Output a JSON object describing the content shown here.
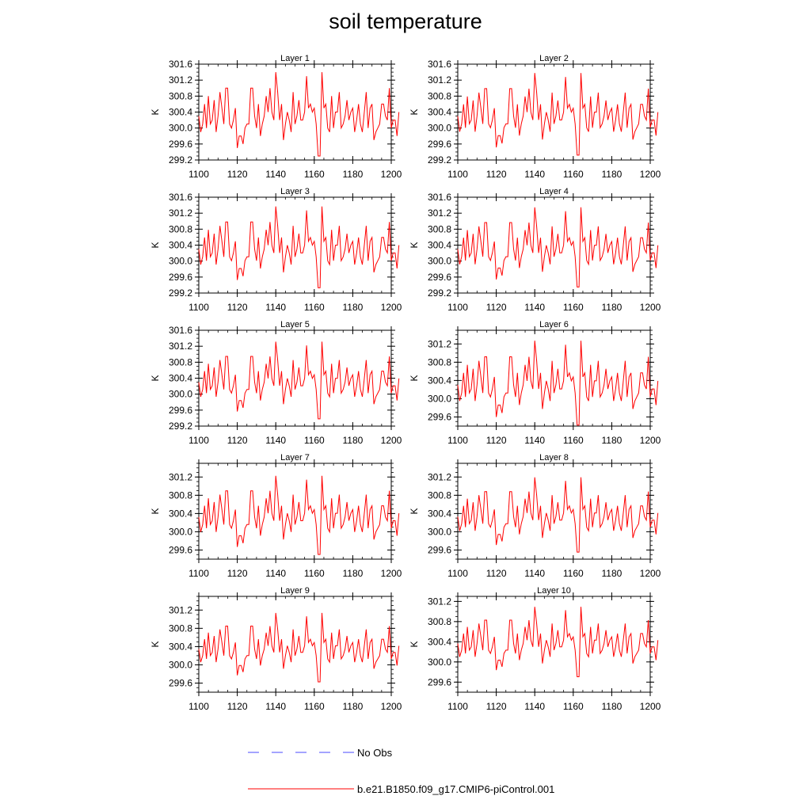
{
  "title": "soil temperature",
  "legend": {
    "obs_label": "No Obs",
    "model_label": "b.e21.B1850.f09_g17.CMIP6-piControl.001",
    "obs_color": "#4a4aff",
    "model_color": "#ff0000"
  },
  "chart_data": {
    "type": "line",
    "x_range": [
      1100,
      1200
    ],
    "x_ticks": [
      1100,
      1120,
      1140,
      1160,
      1180,
      1200
    ],
    "ylabel": "K",
    "line_color": "#ff0000",
    "base_series": [
      300.3,
      299.9,
      300.1,
      300.6,
      300.0,
      300.8,
      300.1,
      300.2,
      300.7,
      299.9,
      300.3,
      300.9,
      300.5,
      300.1,
      301.0,
      301.0,
      300.1,
      300.0,
      300.2,
      300.5,
      299.5,
      299.8,
      299.8,
      299.6,
      300.0,
      300.1,
      300.1,
      301.0,
      301.0,
      300.3,
      300.0,
      300.6,
      299.8,
      300.1,
      300.3,
      300.8,
      300.4,
      301.0,
      300.4,
      300.2,
      301.4,
      300.9,
      300.2,
      300.6,
      299.7,
      300.1,
      300.4,
      300.2,
      299.9,
      300.9,
      300.1,
      300.3,
      300.7,
      300.2,
      300.2,
      300.4,
      301.3,
      300.5,
      300.6,
      300.4,
      300.5,
      300.1,
      299.3,
      299.3,
      301.4,
      300.5,
      300.6,
      300.0,
      299.9,
      300.8,
      300.0,
      300.4,
      300.4,
      300.9,
      300.0,
      300.1,
      300.3,
      300.7,
      300.2,
      300.4,
      300.5,
      299.9,
      300.2,
      300.6,
      300.1,
      299.9,
      300.4,
      300.9,
      300.0,
      300.5,
      300.6,
      299.7,
      299.9,
      300.0,
      300.1,
      300.6,
      300.6,
      300.3,
      300.2,
      301.0,
      300.0,
      300.2,
      300.2,
      299.8,
      300.4
    ],
    "panels": [
      {
        "label": "Layer 1",
        "ylim": [
          299.2,
          301.6
        ],
        "yticks": [
          299.2,
          299.6,
          300.0,
          300.4,
          300.8,
          301.2,
          301.6
        ],
        "amp": 1.0,
        "offset": 0.0
      },
      {
        "label": "Layer 2",
        "ylim": [
          299.2,
          301.6
        ],
        "yticks": [
          299.2,
          299.6,
          300.0,
          300.4,
          300.8,
          301.2,
          301.6
        ],
        "amp": 0.98,
        "offset": 0.0
      },
      {
        "label": "Layer 3",
        "ylim": [
          299.2,
          301.6
        ],
        "yticks": [
          299.2,
          299.6,
          300.0,
          300.4,
          300.8,
          301.2,
          301.6
        ],
        "amp": 0.97,
        "offset": 0.0
      },
      {
        "label": "Layer 4",
        "ylim": [
          299.2,
          301.6
        ],
        "yticks": [
          299.2,
          299.6,
          300.0,
          300.4,
          300.8,
          301.2,
          301.6
        ],
        "amp": 0.95,
        "offset": 0.0
      },
      {
        "label": "Layer 5",
        "ylim": [
          299.2,
          301.6
        ],
        "yticks": [
          299.2,
          299.6,
          300.0,
          300.4,
          300.8,
          301.2,
          301.6
        ],
        "amp": 0.92,
        "offset": 0.0
      },
      {
        "label": "Layer 6",
        "ylim": [
          299.4,
          301.5
        ],
        "yticks": [
          299.6,
          300.0,
          300.4,
          300.8,
          301.2
        ],
        "amp": 0.88,
        "offset": 0.0
      },
      {
        "label": "Layer 7",
        "ylim": [
          299.4,
          301.5
        ],
        "yticks": [
          299.6,
          300.0,
          300.4,
          300.8,
          301.2
        ],
        "amp": 0.82,
        "offset": 0.02
      },
      {
        "label": "Layer 8",
        "ylim": [
          299.4,
          301.5
        ],
        "yticks": [
          299.6,
          300.0,
          300.4,
          300.8,
          301.2
        ],
        "amp": 0.78,
        "offset": 0.03
      },
      {
        "label": "Layer 9",
        "ylim": [
          299.4,
          301.5
        ],
        "yticks": [
          299.6,
          300.0,
          300.4,
          300.8,
          301.2
        ],
        "amp": 0.72,
        "offset": 0.04
      },
      {
        "label": "Layer 10",
        "ylim": [
          299.4,
          301.3
        ],
        "yticks": [
          299.6,
          300.0,
          300.4,
          300.8,
          301.2
        ],
        "amp": 0.66,
        "offset": 0.06
      }
    ]
  }
}
